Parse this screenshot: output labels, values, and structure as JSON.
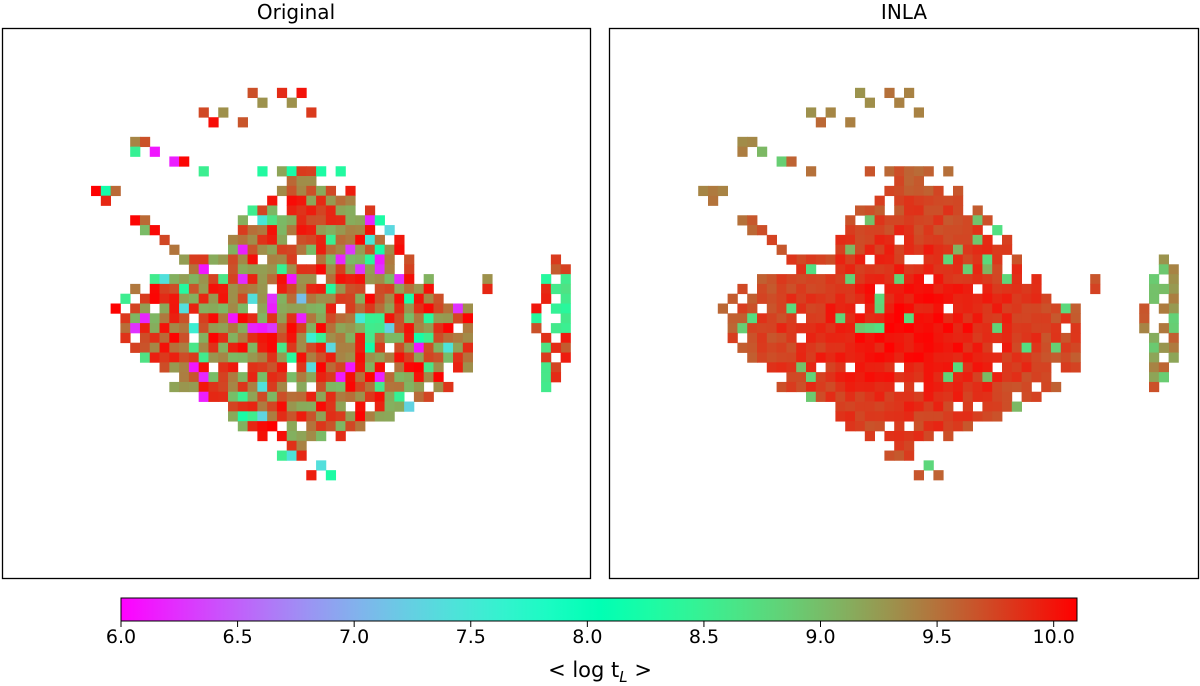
{
  "chart_data": {
    "type": "heatmap",
    "panels": [
      {
        "title": "Original",
        "variant": "original"
      },
      {
        "title": "INLA",
        "variant": "inla"
      }
    ],
    "colorbar": {
      "colormap": "rainbow",
      "vmin": 6.0,
      "vmax": 10.1,
      "ticks": [
        6.0,
        6.5,
        7.0,
        7.5,
        8.0,
        8.5,
        9.0,
        9.5,
        10.0
      ],
      "tick_labels": [
        "6.0",
        "6.5",
        "7.0",
        "7.5",
        "8.0",
        "8.5",
        "9.0",
        "9.5",
        "10.0"
      ],
      "label": "< log t",
      "label_subscript": "L",
      "label_close": " >"
    },
    "grid": {
      "cols": 60,
      "rows": 56
    },
    "colors": {
      "frame": "#000000",
      "background": "#ffffff"
    }
  }
}
